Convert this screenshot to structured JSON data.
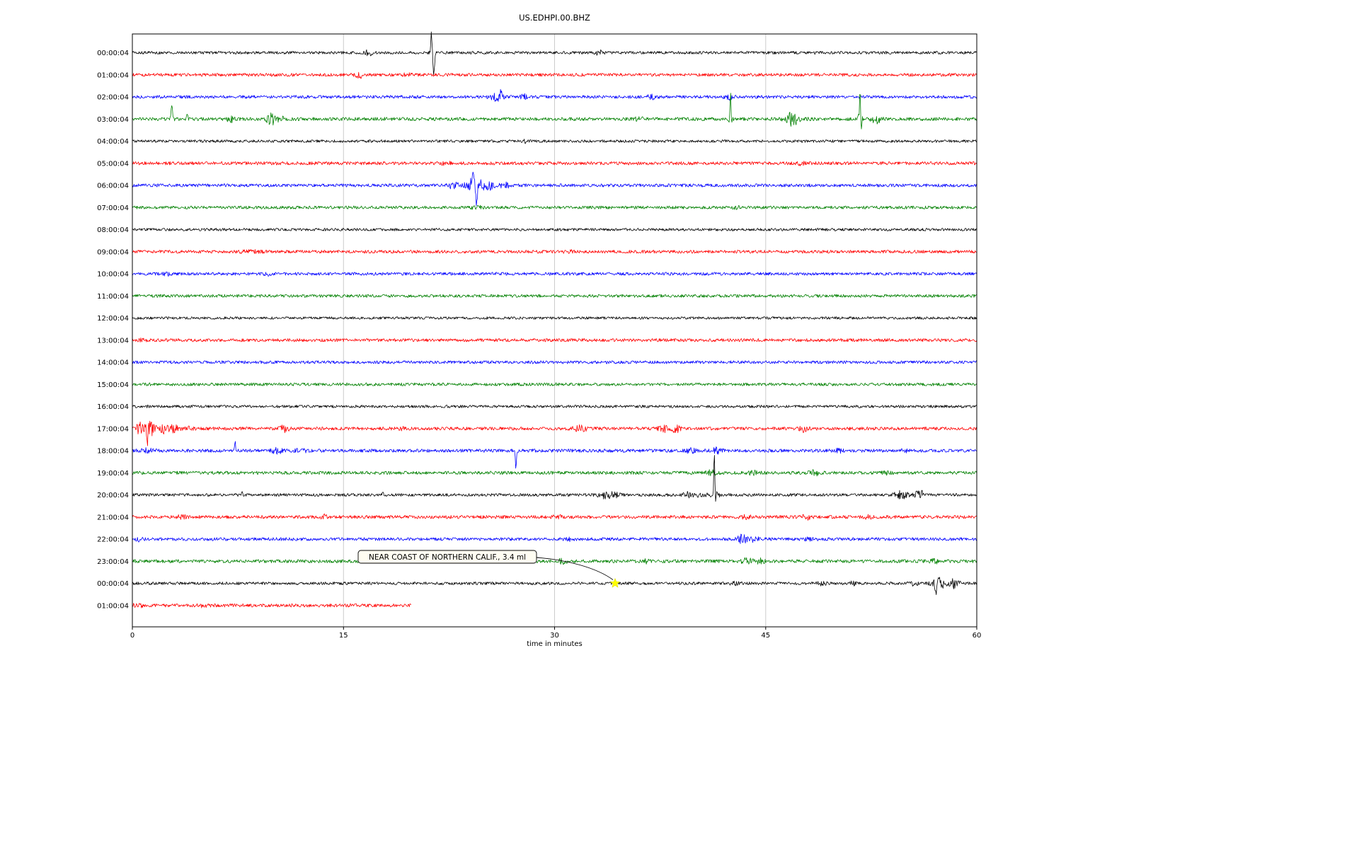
{
  "title": "US.EDHPI.00.BHZ",
  "chart_data": {
    "type": "line",
    "title": "US.EDHPI.00.BHZ",
    "xlabel": "time in minutes",
    "x_range": [
      0,
      60
    ],
    "x_ticks": [
      "0",
      "15",
      "30",
      "45",
      "60"
    ],
    "x_tick_minutes": [
      0,
      15,
      30,
      45,
      60
    ],
    "grid_minutes": [
      15,
      30,
      45
    ],
    "grid_on": true,
    "trace_color_cycle": [
      "#000000",
      "#ff0000",
      "#0000ff",
      "#008000"
    ],
    "event_schema": {
      "k": "b=noise-burst s=spike",
      "t": "time in minutes",
      "a": "amplitude px",
      "w": "width minutes",
      "s": "spike direction 1=up -1=down"
    },
    "rows": [
      {
        "label": "00:00:04",
        "color": "#000000",
        "base": 2.0,
        "events": [
          {
            "k": "b",
            "t": 16.8,
            "a": 3,
            "w": 0.3
          },
          {
            "k": "b",
            "t": 21.3,
            "a": 4,
            "w": 0.15
          },
          {
            "k": "s",
            "t": 21.25,
            "a": 26,
            "w": 0.05,
            "s": 1
          },
          {
            "k": "s",
            "t": 21.42,
            "a": 30,
            "w": 0.07,
            "s": -1
          },
          {
            "k": "b",
            "t": 33.2,
            "a": 3.5,
            "w": 0.25
          }
        ]
      },
      {
        "label": "01:00:04",
        "color": "#ff0000",
        "base": 2.2,
        "events": [
          {
            "k": "b",
            "t": 16.1,
            "a": 4.5,
            "w": 0.25
          },
          {
            "k": "b",
            "t": 19.5,
            "a": 1.5,
            "w": 0.3
          }
        ]
      },
      {
        "label": "02:00:04",
        "color": "#0000ff",
        "base": 2.2,
        "events": [
          {
            "k": "b",
            "t": 25.9,
            "a": 5,
            "w": 0.4
          },
          {
            "k": "s",
            "t": 26.2,
            "a": 9,
            "w": 0.06,
            "s": 1
          },
          {
            "k": "b",
            "t": 27.8,
            "a": 3.5,
            "w": 0.2
          },
          {
            "k": "b",
            "t": 36.9,
            "a": 2.5,
            "w": 0.3
          },
          {
            "k": "b",
            "t": 42.4,
            "a": 2.5,
            "w": 0.3
          }
        ]
      },
      {
        "label": "03:00:04",
        "color": "#008000",
        "base": 2.4,
        "events": [
          {
            "k": "s",
            "t": 2.8,
            "a": 22,
            "w": 0.05,
            "s": 1
          },
          {
            "k": "b",
            "t": 2.8,
            "a": 3,
            "w": 0.15
          },
          {
            "k": "s",
            "t": 3.9,
            "a": 8,
            "w": 0.05,
            "s": 1
          },
          {
            "k": "b",
            "t": 7.0,
            "a": 4,
            "w": 0.3
          },
          {
            "k": "b",
            "t": 9.9,
            "a": 8,
            "w": 0.35
          },
          {
            "k": "b",
            "t": 10.6,
            "a": 4,
            "w": 0.2
          },
          {
            "k": "b",
            "t": 17.7,
            "a": 3,
            "w": 0.2
          },
          {
            "k": "b",
            "t": 36.0,
            "a": 2.5,
            "w": 0.25
          },
          {
            "k": "s",
            "t": 42.5,
            "a": 38,
            "w": 0.05,
            "s": 1
          },
          {
            "k": "s",
            "t": 42.6,
            "a": 10,
            "w": 0.05,
            "s": -1
          },
          {
            "k": "b",
            "t": 42.5,
            "a": 4,
            "w": 0.2
          },
          {
            "k": "b",
            "t": 46.9,
            "a": 9,
            "w": 0.45
          },
          {
            "k": "s",
            "t": 51.7,
            "a": 48,
            "w": 0.05,
            "s": 1
          },
          {
            "k": "s",
            "t": 51.8,
            "a": 13,
            "w": 0.05,
            "s": -1
          },
          {
            "k": "b",
            "t": 51.7,
            "a": 5,
            "w": 0.2
          },
          {
            "k": "b",
            "t": 52.9,
            "a": 7,
            "w": 0.35
          }
        ]
      },
      {
        "label": "04:00:04",
        "color": "#000000",
        "base": 1.9,
        "events": [
          {
            "k": "s",
            "t": 27.85,
            "a": 4,
            "w": 0.04,
            "s": 1
          },
          {
            "k": "s",
            "t": 27.92,
            "a": 5,
            "w": 0.05,
            "s": -1
          }
        ]
      },
      {
        "label": "05:00:04",
        "color": "#ff0000",
        "base": 2.3,
        "events": [
          {
            "k": "b",
            "t": 22.3,
            "a": 1.5,
            "w": 0.4
          },
          {
            "k": "b",
            "t": 47.5,
            "a": 1.8,
            "w": 0.3
          }
        ]
      },
      {
        "label": "06:00:04",
        "color": "#0000ff",
        "base": 2.2,
        "events": [
          {
            "k": "b",
            "t": 22.8,
            "a": 4,
            "w": 0.5
          },
          {
            "k": "s",
            "t": 24.2,
            "a": 14,
            "w": 0.05,
            "s": 1
          },
          {
            "k": "b",
            "t": 24.3,
            "a": 12,
            "w": 0.5
          },
          {
            "k": "s",
            "t": 24.45,
            "a": 30,
            "w": 0.06,
            "s": -1
          },
          {
            "k": "b",
            "t": 25.3,
            "a": 6,
            "w": 0.4
          },
          {
            "k": "b",
            "t": 26.5,
            "a": 3,
            "w": 0.4
          }
        ]
      },
      {
        "label": "07:00:04",
        "color": "#008000",
        "base": 2.1,
        "events": [
          {
            "k": "b",
            "t": 24.5,
            "a": 1.5,
            "w": 0.5
          },
          {
            "k": "b",
            "t": 43.0,
            "a": 1.3,
            "w": 0.4
          }
        ]
      },
      {
        "label": "08:00:04",
        "color": "#000000",
        "base": 1.9,
        "events": []
      },
      {
        "label": "09:00:04",
        "color": "#ff0000",
        "base": 2.2,
        "events": [
          {
            "k": "b",
            "t": 8.5,
            "a": 1.2,
            "w": 0.8
          },
          {
            "k": "b",
            "t": 31.0,
            "a": 1.3,
            "w": 0.4
          }
        ]
      },
      {
        "label": "10:00:04",
        "color": "#0000ff",
        "base": 2.1,
        "events": [
          {
            "k": "b",
            "t": 2.5,
            "a": 1.8,
            "w": 0.3
          },
          {
            "k": "b",
            "t": 9.8,
            "a": 1.4,
            "w": 0.4
          }
        ]
      },
      {
        "label": "11:00:04",
        "color": "#008000",
        "base": 2.1,
        "events": []
      },
      {
        "label": "12:00:04",
        "color": "#000000",
        "base": 1.8,
        "events": []
      },
      {
        "label": "13:00:04",
        "color": "#ff0000",
        "base": 2.2,
        "events": [
          {
            "k": "b",
            "t": 0.8,
            "a": 1.8,
            "w": 0.3
          }
        ]
      },
      {
        "label": "14:00:04",
        "color": "#0000ff",
        "base": 2.1,
        "events": []
      },
      {
        "label": "15:00:04",
        "color": "#008000",
        "base": 2.1,
        "events": []
      },
      {
        "label": "16:00:04",
        "color": "#000000",
        "base": 1.9,
        "events": [
          {
            "k": "b",
            "t": 1.2,
            "a": 2,
            "w": 0.15
          }
        ]
      },
      {
        "label": "17:00:04",
        "color": "#ff0000",
        "base": 2.3,
        "events": [
          {
            "k": "b",
            "t": 0.5,
            "a": 8,
            "w": 0.3
          },
          {
            "k": "s",
            "t": 0.95,
            "a": 10,
            "w": 0.05,
            "s": 1
          },
          {
            "k": "s",
            "t": 1.05,
            "a": 22,
            "w": 0.06,
            "s": -1
          },
          {
            "k": "b",
            "t": 1.3,
            "a": 9,
            "w": 0.3
          },
          {
            "k": "b",
            "t": 2.2,
            "a": 6,
            "w": 0.35
          },
          {
            "k": "b",
            "t": 3.0,
            "a": 5,
            "w": 0.3
          },
          {
            "k": "b",
            "t": 4.0,
            "a": 3,
            "w": 0.3
          },
          {
            "k": "b",
            "t": 10.8,
            "a": 4,
            "w": 0.3
          },
          {
            "k": "b",
            "t": 19.2,
            "a": 2,
            "w": 0.3
          },
          {
            "k": "b",
            "t": 31.8,
            "a": 3.5,
            "w": 0.5
          },
          {
            "k": "b",
            "t": 37.8,
            "a": 4,
            "w": 0.4
          },
          {
            "k": "b",
            "t": 38.6,
            "a": 5,
            "w": 0.3
          },
          {
            "k": "b",
            "t": 47.7,
            "a": 4,
            "w": 0.3
          }
        ]
      },
      {
        "label": "18:00:04",
        "color": "#0000ff",
        "base": 2.3,
        "events": [
          {
            "k": "b",
            "t": 1.0,
            "a": 2.5,
            "w": 0.5
          },
          {
            "k": "s",
            "t": 7.3,
            "a": 14,
            "w": 0.05,
            "s": 1
          },
          {
            "k": "b",
            "t": 10.3,
            "a": 3,
            "w": 0.4
          },
          {
            "k": "b",
            "t": 12.0,
            "a": 2.5,
            "w": 0.4
          },
          {
            "k": "s",
            "t": 27.25,
            "a": 27,
            "w": 0.05,
            "s": -1
          },
          {
            "k": "b",
            "t": 39.7,
            "a": 3,
            "w": 0.35
          },
          {
            "k": "b",
            "t": 41.5,
            "a": 3.5,
            "w": 0.35
          },
          {
            "k": "b",
            "t": 50.2,
            "a": 2.5,
            "w": 0.3
          },
          {
            "k": "b",
            "t": 55.0,
            "a": 2.5,
            "w": 0.3
          }
        ]
      },
      {
        "label": "19:00:04",
        "color": "#008000",
        "base": 2.3,
        "events": [
          {
            "k": "b",
            "t": 41.2,
            "a": 3,
            "w": 0.4
          },
          {
            "k": "b",
            "t": 44.0,
            "a": 2.5,
            "w": 0.4
          },
          {
            "k": "b",
            "t": 48.5,
            "a": 2.8,
            "w": 0.4
          },
          {
            "k": "b",
            "t": 53.5,
            "a": 2.3,
            "w": 0.3
          }
        ]
      },
      {
        "label": "20:00:04",
        "color": "#000000",
        "base": 2.0,
        "events": [
          {
            "k": "s",
            "t": 7.8,
            "a": 5,
            "w": 0.04,
            "s": 1
          },
          {
            "k": "s",
            "t": 17.8,
            "a": 5,
            "w": 0.04,
            "s": 1
          },
          {
            "k": "b",
            "t": 33.6,
            "a": 4,
            "w": 0.5
          },
          {
            "k": "b",
            "t": 34.3,
            "a": 3,
            "w": 0.3
          },
          {
            "k": "b",
            "t": 39.6,
            "a": 5,
            "w": 0.4
          },
          {
            "k": "b",
            "t": 40.5,
            "a": 4,
            "w": 0.3
          },
          {
            "k": "s",
            "t": 41.35,
            "a": 55,
            "w": 0.05,
            "s": 1
          },
          {
            "k": "s",
            "t": 41.45,
            "a": 8,
            "w": 0.05,
            "s": -1
          },
          {
            "k": "b",
            "t": 41.4,
            "a": 5,
            "w": 0.3
          },
          {
            "k": "b",
            "t": 54.6,
            "a": 5,
            "w": 0.5
          },
          {
            "k": "b",
            "t": 55.8,
            "a": 4,
            "w": 0.3
          },
          {
            "k": "s",
            "t": 56.1,
            "a": 7,
            "w": 0.04,
            "s": 1
          }
        ]
      },
      {
        "label": "21:00:04",
        "color": "#ff0000",
        "base": 2.3,
        "events": [
          {
            "k": "b",
            "t": 3.5,
            "a": 2.2,
            "w": 0.3
          },
          {
            "k": "b",
            "t": 13.7,
            "a": 2.4,
            "w": 0.3
          },
          {
            "k": "b",
            "t": 30.2,
            "a": 2,
            "w": 0.3
          },
          {
            "k": "b",
            "t": 43.6,
            "a": 2.4,
            "w": 0.3
          },
          {
            "k": "b",
            "t": 47.9,
            "a": 2.8,
            "w": 0.3
          },
          {
            "k": "b",
            "t": 52.3,
            "a": 2.8,
            "w": 0.3
          }
        ]
      },
      {
        "label": "22:00:04",
        "color": "#0000ff",
        "base": 2.2,
        "events": [
          {
            "k": "b",
            "t": 0.5,
            "a": 2,
            "w": 0.3
          },
          {
            "k": "b",
            "t": 31.0,
            "a": 2,
            "w": 0.3
          },
          {
            "k": "b",
            "t": 43.35,
            "a": 7,
            "w": 0.3
          },
          {
            "k": "b",
            "t": 44.2,
            "a": 3,
            "w": 0.3
          },
          {
            "k": "b",
            "t": 48.0,
            "a": 2,
            "w": 0.3
          }
        ]
      },
      {
        "label": "23:00:04",
        "color": "#008000",
        "base": 2.4,
        "events": [
          {
            "k": "b",
            "t": 30.6,
            "a": 3,
            "w": 0.3
          },
          {
            "k": "b",
            "t": 36.5,
            "a": 2,
            "w": 0.3
          },
          {
            "k": "b",
            "t": 43.7,
            "a": 5,
            "w": 0.35
          },
          {
            "k": "b",
            "t": 44.6,
            "a": 3,
            "w": 0.3
          },
          {
            "k": "b",
            "t": 57.0,
            "a": 2.5,
            "w": 0.3
          }
        ]
      },
      {
        "label": "00:00:04",
        "color": "#000000",
        "base": 2.0,
        "events": [
          {
            "k": "b",
            "t": 42.8,
            "a": 2,
            "w": 0.3
          },
          {
            "k": "b",
            "t": 49.0,
            "a": 2.3,
            "w": 0.3
          },
          {
            "k": "b",
            "t": 51.2,
            "a": 2,
            "w": 0.3
          },
          {
            "k": "b",
            "t": 55.5,
            "a": 3,
            "w": 0.3
          },
          {
            "k": "s",
            "t": 57.1,
            "a": 12,
            "w": 0.06,
            "s": -1
          },
          {
            "k": "b",
            "t": 57.3,
            "a": 8,
            "w": 0.45
          },
          {
            "k": "b",
            "t": 58.4,
            "a": 6,
            "w": 0.35
          }
        ]
      },
      {
        "label": "01:00:04",
        "color": "#ff0000",
        "base": 2.3,
        "end": 19.8,
        "events": [
          {
            "k": "b",
            "t": 0.4,
            "a": 2.5,
            "w": 0.3
          },
          {
            "k": "b",
            "t": 5.0,
            "a": 1.5,
            "w": 0.5
          }
        ]
      }
    ],
    "annotation": {
      "text": "NEAR COAST OF NORTHERN CALIF., 3.4 ml",
      "target_row": 24,
      "target_minute": 34.3,
      "marker": "star",
      "marker_color": "#ffff00"
    }
  }
}
